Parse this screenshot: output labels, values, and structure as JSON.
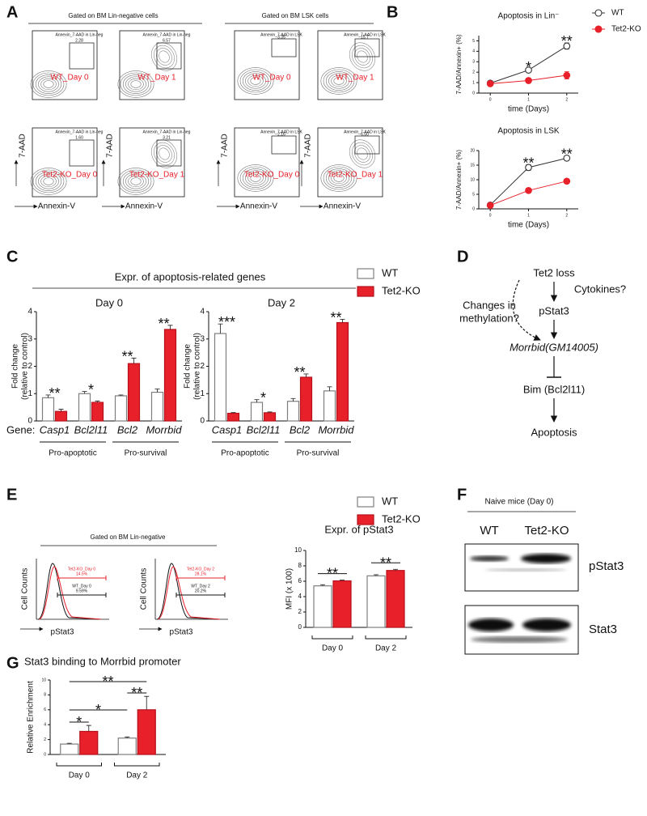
{
  "panel_labels": [
    "A",
    "B",
    "C",
    "D",
    "E",
    "F",
    "G"
  ],
  "flow_a": {
    "headers": [
      "Gated on BM  Lin-negative cells",
      "Gated on BM  LSK cells"
    ],
    "y_label": "7-AAD",
    "x_label": "Annexin-V",
    "plots": [
      {
        "gate": "Annexin_7-AAD in Lin-neg",
        "percent": "2.28",
        "sample": "WT_Day 0"
      },
      {
        "gate": "Annexin_7-AAD in Lin-neg",
        "percent": "6.57",
        "sample": "WT_Day 1"
      },
      {
        "gate": "Annexin_7-AAD in LSK",
        "percent": "3.35",
        "sample": "WT_Day 0"
      },
      {
        "gate": "Annexin_7-AAD in LSK",
        "percent": "15.7",
        "sample": "WT_Day 1"
      },
      {
        "gate": "Annexin_7-AAD in Lin-neg",
        "percent": "1.60",
        "sample": "Tet2-KO_Day 0"
      },
      {
        "gate": "Annexin_7-AAD in Lin-neg",
        "percent": "3.21",
        "sample": "Tet2-KO_Day 1"
      },
      {
        "gate": "Annexin_7-AAD in LSK",
        "percent": "2.16",
        "sample": "Tet2-KO_Day 0"
      },
      {
        "gate": "Annexin_7-AAD in LSK",
        "percent": "6.50",
        "sample": "Tet2-KO_Day 1"
      }
    ]
  },
  "chart_data": [
    {
      "type": "line",
      "title": "Apoptosis in Lin⁻",
      "ylabel": "7-AAD/Annexin+ (%)",
      "xlabel": "time (Days)",
      "x": [
        0,
        1,
        2
      ],
      "xlim": [
        -0.3,
        2.3
      ],
      "xticks": [
        0,
        1,
        2
      ],
      "ylim": [
        0,
        5.5
      ],
      "yticks": [
        0,
        1,
        2,
        3,
        4,
        5
      ],
      "series": [
        {
          "name": "WT",
          "color": "#333333",
          "values": [
            0.95,
            2.2,
            4.5
          ],
          "errors": [
            0.1,
            0.12,
            0.3
          ]
        },
        {
          "name": "Tet2-KO",
          "color": "#e8202a",
          "values": [
            0.9,
            1.2,
            1.7
          ],
          "errors": [
            0.1,
            0.1,
            0.35
          ]
        }
      ],
      "stars": [
        null,
        "*",
        "**"
      ],
      "legend": "right"
    },
    {
      "type": "line",
      "title": "Apoptosis in LSK",
      "ylabel": "7-AAD/Annexin+ (%)",
      "xlabel": "time (Days)",
      "x": [
        0,
        1,
        2
      ],
      "xlim": [
        -0.3,
        2.3
      ],
      "xticks": [
        0,
        1,
        2
      ],
      "ylim": [
        0,
        20
      ],
      "yticks": [
        0,
        5,
        10,
        15,
        20
      ],
      "series": [
        {
          "name": "WT",
          "color": "#333333",
          "values": [
            1.3,
            14.2,
            17.4
          ],
          "errors": [
            0.2,
            1,
            0.8
          ]
        },
        {
          "name": "Tet2-KO",
          "color": "#e8202a",
          "values": [
            1.2,
            6.3,
            9.5
          ],
          "errors": [
            0.2,
            0.5,
            0.6
          ]
        }
      ],
      "stars": [
        null,
        "**",
        "**"
      ]
    },
    {
      "type": "bar",
      "title": "Day 0",
      "ylabel": [
        "Fold  change",
        "(relative to control)"
      ],
      "categories": [
        "Casp1",
        "Bcl2l11",
        "Bcl2",
        "Morrbid"
      ],
      "group_labels": [
        "Pro-apoptotic",
        "Pro-survival"
      ],
      "ylim": [
        0,
        4
      ],
      "yticks": [
        0,
        1,
        2,
        3,
        4
      ],
      "series": [
        {
          "name": "WT",
          "color": "#ffffff",
          "values": [
            0.85,
            1.0,
            0.92,
            1.05
          ],
          "errors": [
            0.1,
            0.08,
            0.03,
            0.12
          ]
        },
        {
          "name": "Tet2-KO",
          "color": "#e8202a",
          "values": [
            0.35,
            0.68,
            2.1,
            3.35
          ],
          "errors": [
            0.08,
            0.05,
            0.2,
            0.15
          ]
        }
      ],
      "stars": [
        "**",
        "*",
        "**",
        "**"
      ]
    },
    {
      "type": "bar",
      "title": "Day 2",
      "ylabel": [
        "Fold  change",
        "(relative to control)"
      ],
      "categories": [
        "Casp1",
        "Bcl2l11",
        "Bcl2",
        "Morrbid"
      ],
      "group_labels": [
        "Pro-apoptotic",
        "Pro-survival"
      ],
      "ylim": [
        0,
        4
      ],
      "yticks": [
        0,
        1,
        2,
        3,
        4
      ],
      "series": [
        {
          "name": "WT",
          "color": "#ffffff",
          "values": [
            3.2,
            0.68,
            0.72,
            1.1
          ],
          "errors": [
            0.35,
            0.1,
            0.1,
            0.15
          ]
        },
        {
          "name": "Tet2-KO",
          "color": "#e8202a",
          "values": [
            0.28,
            0.3,
            1.6,
            3.6
          ],
          "errors": [
            0.03,
            0.03,
            0.12,
            0.12
          ]
        }
      ],
      "stars": [
        "***",
        "*",
        "**",
        "**"
      ]
    },
    {
      "type": "bar",
      "title": "Expr. of pStat3",
      "ylabel": [
        "MFI (x 100)"
      ],
      "categories": [
        "Day 0",
        "Day 2"
      ],
      "ylim": [
        0,
        10
      ],
      "yticks": [
        0,
        2,
        4,
        6,
        8,
        10
      ],
      "series": [
        {
          "name": "WT",
          "color": "#ffffff",
          "values": [
            5.4,
            6.7
          ],
          "errors": [
            0.15,
            0.15
          ]
        },
        {
          "name": "Tet2-KO",
          "color": "#e8202a",
          "values": [
            6.05,
            7.4
          ],
          "errors": [
            0.1,
            0.15
          ]
        }
      ],
      "stars": [
        "**",
        "**"
      ]
    },
    {
      "type": "bar",
      "title": "Stat3 binding to Morrbid promoter",
      "ylabel": [
        "Relative Enrichment"
      ],
      "categories": [
        "Day 0",
        "Day 2"
      ],
      "ylim": [
        0,
        10
      ],
      "yticks": [
        0,
        2,
        4,
        6,
        8,
        10
      ],
      "series": [
        {
          "name": "WT",
          "color": "#ffffff",
          "values": [
            1.4,
            2.2
          ],
          "errors": [
            0.1,
            0.15
          ]
        },
        {
          "name": "Tet2-KO",
          "color": "#e8202a",
          "values": [
            3.1,
            6.0
          ],
          "errors": [
            0.8,
            1.8
          ]
        }
      ],
      "stars": [
        "*",
        "*",
        "**",
        "**"
      ]
    }
  ],
  "panel_c": {
    "title": "Expr. of apoptosis-related genes",
    "gene_label": "Gene:"
  },
  "diagram_d": {
    "nodes": [
      "Tet2 loss",
      "Cytokines?",
      "pStat3",
      "Morrbid(GM14005)",
      "Bim (Bcl2l11)",
      "Apoptosis"
    ],
    "side_note": [
      "Changes in",
      "methylation?"
    ]
  },
  "flow_e": {
    "header": "Gated on BM Lin-negative",
    "y_label": "Cell Counts",
    "x_label": "pStat3",
    "plots": [
      {
        "ko_label": "Tet2-KO_Day 0",
        "ko_percent": "14.5%",
        "wt_label": "WT_Day 0",
        "wt_percent": "9.59%"
      },
      {
        "ko_label": "Tet2-KO_Day 2",
        "ko_percent": "28.1%",
        "wt_label": "WT_Day 2",
        "wt_percent": "20.2%"
      }
    ]
  },
  "blot_f": {
    "header": "Naive mice (Day 0)",
    "lanes": [
      "WT",
      "Tet2-KO"
    ],
    "proteins": [
      "pStat3",
      "Stat3"
    ]
  }
}
